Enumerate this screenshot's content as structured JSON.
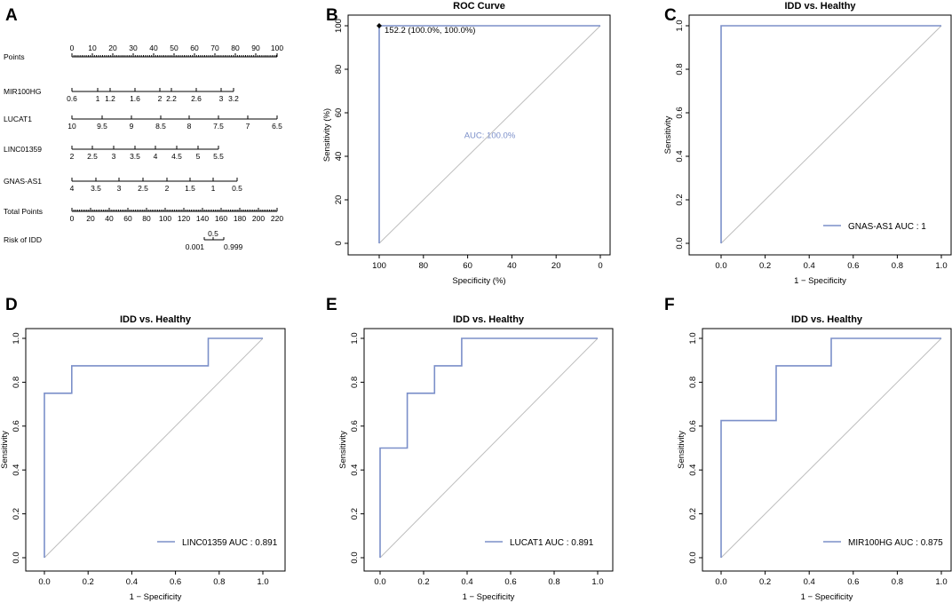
{
  "panel_letters": [
    "A",
    "B",
    "C",
    "D",
    "E",
    "F"
  ],
  "colors": {
    "roc": "#7b8fc9",
    "diagonal": "#bdbdbd",
    "axis": "#000000"
  },
  "nomogram": {
    "rows": [
      {
        "label": "Points",
        "ticks": [
          "0",
          "10",
          "20",
          "30",
          "40",
          "50",
          "60",
          "70",
          "80",
          "90",
          "100"
        ],
        "label_pos": "above"
      },
      {
        "label": "MIR100HG",
        "ticks": [
          "0.6",
          "1",
          "1.2",
          "1.6",
          "2",
          "2.2",
          "2.6",
          "3",
          "3.2"
        ],
        "label_pos": "below"
      },
      {
        "label": "LUCAT1",
        "ticks": [
          "10",
          "9.5",
          "9",
          "8.5",
          "8",
          "7.5",
          "7",
          "6.5"
        ],
        "label_pos": "below"
      },
      {
        "label": "LINC01359",
        "ticks": [
          "2",
          "2.5",
          "3",
          "3.5",
          "4",
          "4.5",
          "5",
          "5.5"
        ],
        "label_pos": "below"
      },
      {
        "label": "GNAS-AS1",
        "ticks": [
          "4",
          "3.5",
          "3",
          "2.5",
          "2",
          "1.5",
          "1",
          "0.5"
        ],
        "label_pos": "below"
      },
      {
        "label": "Total Points",
        "ticks": [
          "0",
          "20",
          "40",
          "60",
          "80",
          "100",
          "120",
          "140",
          "160",
          "180",
          "200",
          "220"
        ],
        "label_pos": "below"
      },
      {
        "label": "Risk of IDD",
        "ticks": [
          "0.001",
          "0.5",
          "0.999"
        ],
        "label_pos": "mixed"
      }
    ]
  },
  "chart_data": [
    {
      "panel": "B",
      "type": "line",
      "title": "ROC Curve",
      "xlabel": "Specificity (%)",
      "ylabel": "Sensitivity (%)",
      "xlim": [
        100,
        0
      ],
      "ylim": [
        0,
        100
      ],
      "xticks": [
        "100",
        "80",
        "60",
        "40",
        "20",
        "0"
      ],
      "yticks": [
        "0",
        "20",
        "40",
        "60",
        "80",
        "100"
      ],
      "series": [
        {
          "name": "ROC",
          "x": [
            100,
            100,
            0
          ],
          "y": [
            0,
            100,
            100
          ]
        }
      ],
      "annotations": {
        "auc": "AUC: 100.0%",
        "threshold": "152.2 (100.0%, 100.0%)"
      }
    },
    {
      "panel": "C",
      "type": "line",
      "title": "IDD vs. Healthy",
      "xlabel": "1 − Specificity",
      "ylabel": "Sensitivity",
      "xlim": [
        0,
        1
      ],
      "ylim": [
        0,
        1
      ],
      "xticks": [
        "0.0",
        "0.2",
        "0.4",
        "0.6",
        "0.8",
        "1.0"
      ],
      "yticks": [
        "0.0",
        "0.2",
        "0.4",
        "0.6",
        "0.8",
        "1.0"
      ],
      "series": [
        {
          "name": "GNAS-AS1",
          "x": [
            0,
            0,
            1
          ],
          "y": [
            0,
            1,
            1
          ]
        }
      ],
      "legend": "GNAS-AS1 AUC : 1"
    },
    {
      "panel": "D",
      "type": "line",
      "title": "IDD vs. Healthy",
      "xlabel": "1 − Specificity",
      "ylabel": "Sensitivity",
      "xlim": [
        0,
        1
      ],
      "ylim": [
        0,
        1
      ],
      "xticks": [
        "0.0",
        "0.2",
        "0.4",
        "0.6",
        "0.8",
        "1.0"
      ],
      "yticks": [
        "0.0",
        "0.2",
        "0.4",
        "0.6",
        "0.8",
        "1.0"
      ],
      "series": [
        {
          "name": "LINC01359",
          "x": [
            0,
            0,
            0.125,
            0.125,
            0.75,
            0.75,
            1
          ],
          "y": [
            0,
            0.75,
            0.75,
            0.875,
            0.875,
            1,
            1
          ]
        }
      ],
      "legend": "LINC01359 AUC : 0.891"
    },
    {
      "panel": "E",
      "type": "line",
      "title": "IDD vs. Healthy",
      "xlabel": "1 − Specificity",
      "ylabel": "Sensitivity",
      "xlim": [
        0,
        1
      ],
      "ylim": [
        0,
        1
      ],
      "xticks": [
        "0.0",
        "0.2",
        "0.4",
        "0.6",
        "0.8",
        "1.0"
      ],
      "yticks": [
        "0.0",
        "0.2",
        "0.4",
        "0.6",
        "0.8",
        "1.0"
      ],
      "series": [
        {
          "name": "LUCAT1",
          "x": [
            0,
            0,
            0.125,
            0.125,
            0.25,
            0.25,
            0.375,
            0.375,
            1
          ],
          "y": [
            0,
            0.5,
            0.5,
            0.75,
            0.75,
            0.875,
            0.875,
            1,
            1
          ]
        }
      ],
      "legend": "LUCAT1 AUC : 0.891"
    },
    {
      "panel": "F",
      "type": "line",
      "title": "IDD vs. Healthy",
      "xlabel": "1 − Specificity",
      "ylabel": "Sensitivity",
      "xlim": [
        0,
        1
      ],
      "ylim": [
        0,
        1
      ],
      "xticks": [
        "0.0",
        "0.2",
        "0.4",
        "0.6",
        "0.8",
        "1.0"
      ],
      "yticks": [
        "0.0",
        "0.2",
        "0.4",
        "0.6",
        "0.8",
        "1.0"
      ],
      "series": [
        {
          "name": "MIR100HG",
          "x": [
            0,
            0,
            0.25,
            0.25,
            0.5,
            0.5,
            1
          ],
          "y": [
            0,
            0.625,
            0.625,
            0.875,
            0.875,
            1,
            1
          ]
        }
      ],
      "legend": "MIR100HG AUC : 0.875"
    }
  ]
}
